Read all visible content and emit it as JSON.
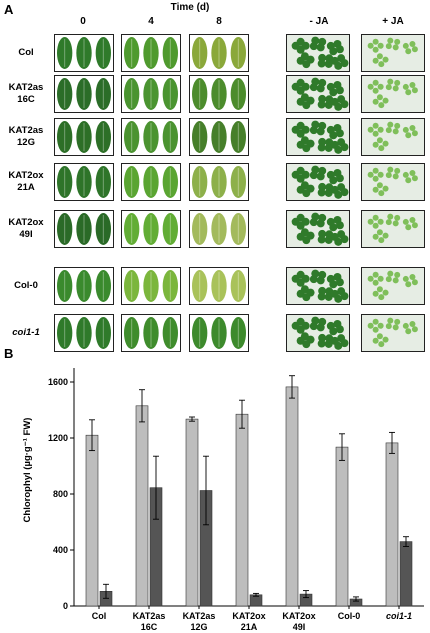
{
  "panel_a": {
    "letter": "A",
    "time_title": "Time (d)",
    "columns": [
      "0",
      "4",
      "8",
      "- JA",
      "+ JA"
    ],
    "rows": [
      {
        "line1": "Col",
        "line2": "",
        "italic": false,
        "leaf_colors": [
          "#2f7a2a",
          "#4f9a2e",
          "#8aa83a"
        ]
      },
      {
        "line1": "KAT2as",
        "line2": "16C",
        "italic": false,
        "leaf_colors": [
          "#2b6d28",
          "#4a9430",
          "#4c8c2c"
        ]
      },
      {
        "line1": "KAT2as",
        "line2": "12G",
        "italic": false,
        "leaf_colors": [
          "#2d6f27",
          "#4b9330",
          "#467f2a"
        ]
      },
      {
        "line1": "KAT2ox",
        "line2": "21A",
        "italic": false,
        "leaf_colors": [
          "#2e7429",
          "#5aa532",
          "#8db04a"
        ]
      },
      {
        "line1": "KAT2ox",
        "line2": "49I",
        "italic": false,
        "leaf_colors": [
          "#2a6a27",
          "#62ad35",
          "#a3ba5c"
        ]
      },
      {
        "line1": "Col-0",
        "line2": "",
        "italic": false,
        "leaf_colors": [
          "#3a8a2d",
          "#7bb63c",
          "#a9c25a"
        ]
      },
      {
        "line1": "coi1-1",
        "line2": "",
        "italic": true,
        "leaf_colors": [
          "#2f7a2a",
          "#3f8c2c",
          "#3d8a2c"
        ]
      }
    ]
  },
  "panel_b": {
    "letter": "B",
    "ylabel": "Chlorophyl (µg·g⁻¹ FW)",
    "chart_data": {
      "type": "bar",
      "categories": [
        [
          "Col",
          ""
        ],
        [
          "KAT2as",
          "16C"
        ],
        [
          "KAT2as",
          "12G"
        ],
        [
          "KAT2ox",
          "21A"
        ],
        [
          "KAT2ox",
          "49I"
        ],
        [
          "Col-0",
          ""
        ],
        [
          "coi1-1",
          ""
        ]
      ],
      "italic_categories": [
        6
      ],
      "series": [
        {
          "color": "#bdbdbd",
          "values": [
            1220,
            1430,
            1335,
            1370,
            1565,
            1135,
            1165
          ],
          "errors": [
            110,
            115,
            15,
            100,
            80,
            95,
            75
          ]
        },
        {
          "color": "#555555",
          "values": [
            105,
            845,
            825,
            80,
            85,
            50,
            460
          ],
          "errors": [
            50,
            225,
            245,
            10,
            25,
            15,
            35
          ]
        }
      ],
      "ylim": [
        0,
        1700
      ],
      "yticks": [
        0,
        400,
        800,
        1200,
        1600
      ]
    }
  }
}
